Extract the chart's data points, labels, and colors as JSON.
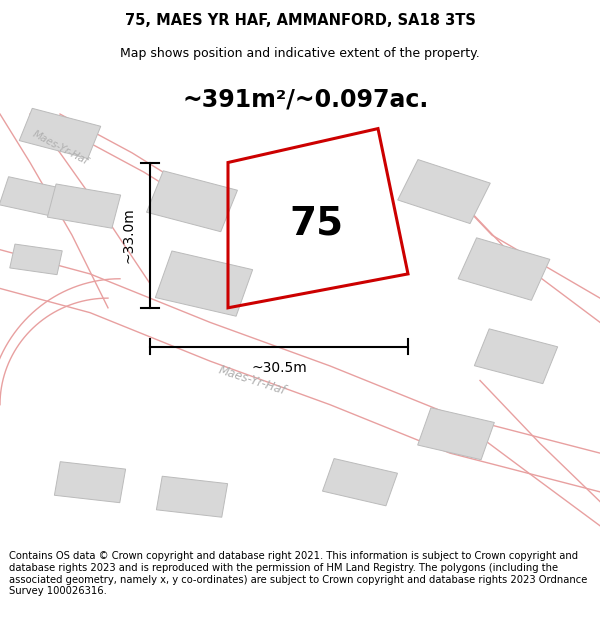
{
  "title": "75, MAES YR HAF, AMMANFORD, SA18 3TS",
  "subtitle": "Map shows position and indicative extent of the property.",
  "footer": "Contains OS data © Crown copyright and database right 2021. This information is subject to Crown copyright and database rights 2023 and is reproduced with the permission of HM Land Registry. The polygons (including the associated geometry, namely x, y co-ordinates) are subject to Crown copyright and database rights 2023 Ordnance Survey 100026316.",
  "area_text": "~391m²/~0.097ac.",
  "number_label": "75",
  "dim_vertical": "~33.0m",
  "dim_horizontal": "~30.5m",
  "road_label": "Maes-Yr-Haf",
  "road_label2": "Maes-Yr-Haf",
  "bg_color": "#ffffff",
  "map_bg": "#f0f0f0",
  "plot_color_red": "#cc0000",
  "building_fill": "#d8d8d8",
  "building_edge": "#bbbbbb",
  "road_line_color": "#e8a0a0",
  "title_fontsize": 10.5,
  "subtitle_fontsize": 9,
  "footer_fontsize": 7.2,
  "area_fontsize": 17,
  "number_fontsize": 28,
  "dim_fontsize": 10
}
